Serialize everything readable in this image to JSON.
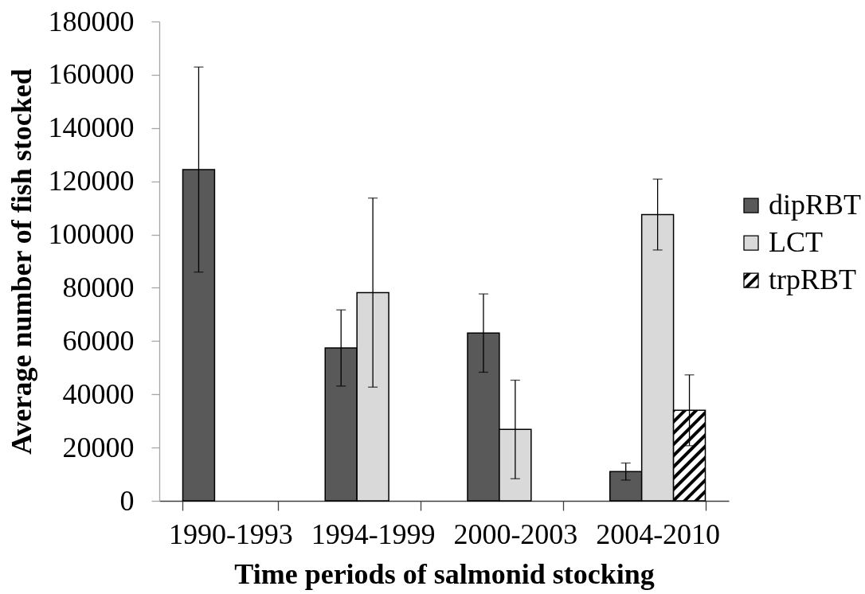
{
  "chart_data": {
    "type": "bar",
    "xlabel": "Time periods of salmonid stocking",
    "ylabel": "Average number of fish stocked",
    "categories": [
      "1990-1993",
      "1994-1999",
      "2000-2003",
      "2004-2010"
    ],
    "series": [
      {
        "name": "dipRBT",
        "color": "#595959",
        "values": [
          124400,
          57400,
          63000,
          11000
        ],
        "errors": [
          38500,
          14300,
          14700,
          3200
        ]
      },
      {
        "name": "LCT",
        "color": "#d9d9d9",
        "values": [
          null,
          78200,
          26800,
          107500
        ],
        "errors": [
          null,
          35500,
          18500,
          13300
        ]
      },
      {
        "name": "trpRBT",
        "color": "#000000",
        "values": [
          null,
          null,
          null,
          34000
        ],
        "errors": [
          null,
          null,
          null,
          13300
        ]
      }
    ],
    "ylim": [
      0,
      180000
    ],
    "yticks": [
      0,
      20000,
      40000,
      60000,
      80000,
      100000,
      120000,
      140000,
      160000,
      180000
    ],
    "legend": "right"
  }
}
